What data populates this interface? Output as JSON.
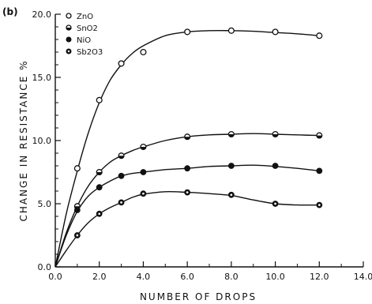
{
  "chart_data": {
    "type": "scatter",
    "panel_label": "(b)",
    "xlabel": "NUMBER  OF  DROPS",
    "ylabel": "CHANGE  IN  RESISTANCE  %",
    "xlim": [
      0,
      14
    ],
    "ylim": [
      0,
      20
    ],
    "xticks": [
      "0.0",
      "2.0",
      "4.0",
      "6.0",
      "8.0",
      "10.0",
      "12.0",
      "14.0"
    ],
    "yticks": [
      "0.0",
      "5.0",
      "10.0",
      "15.0",
      "20.0"
    ],
    "grid": false,
    "legend_position": "top-left",
    "series": [
      {
        "name": "ZnO",
        "marker": "open-circle",
        "x": [
          1,
          2,
          3,
          4,
          6,
          8,
          10,
          12
        ],
        "y": [
          7.8,
          13.2,
          16.1,
          17.0,
          18.6,
          18.7,
          18.6,
          18.3
        ],
        "curve": [
          [
            0,
            0
          ],
          [
            0.5,
            4.2
          ],
          [
            1,
            7.6
          ],
          [
            1.5,
            10.6
          ],
          [
            2,
            13.0
          ],
          [
            2.5,
            14.8
          ],
          [
            3,
            16.0
          ],
          [
            3.5,
            16.9
          ],
          [
            4,
            17.5
          ],
          [
            5,
            18.3
          ],
          [
            6,
            18.6
          ],
          [
            7,
            18.7
          ],
          [
            8,
            18.7
          ],
          [
            9,
            18.65
          ],
          [
            10,
            18.55
          ],
          [
            11,
            18.45
          ],
          [
            12,
            18.3
          ]
        ]
      },
      {
        "name": "SnO2",
        "marker": "half-circle",
        "x": [
          1,
          2,
          3,
          4,
          6,
          8,
          10,
          12
        ],
        "y": [
          4.8,
          7.5,
          8.8,
          9.5,
          10.3,
          10.5,
          10.5,
          10.4
        ],
        "curve": [
          [
            0,
            0
          ],
          [
            0.5,
            2.7
          ],
          [
            1,
            4.8
          ],
          [
            1.5,
            6.4
          ],
          [
            2,
            7.5
          ],
          [
            2.5,
            8.3
          ],
          [
            3,
            8.8
          ],
          [
            3.5,
            9.2
          ],
          [
            4,
            9.5
          ],
          [
            5,
            10.0
          ],
          [
            6,
            10.3
          ],
          [
            7,
            10.45
          ],
          [
            8,
            10.5
          ],
          [
            9,
            10.55
          ],
          [
            10,
            10.5
          ],
          [
            11,
            10.45
          ],
          [
            12,
            10.4
          ]
        ]
      },
      {
        "name": "NiO",
        "marker": "filled-circle",
        "x": [
          1,
          2,
          3,
          4,
          6,
          8,
          10,
          12
        ],
        "y": [
          4.5,
          6.3,
          7.2,
          7.5,
          7.8,
          8.0,
          8.0,
          7.6
        ],
        "curve": [
          [
            0,
            0
          ],
          [
            0.5,
            2.5
          ],
          [
            1,
            4.4
          ],
          [
            1.5,
            5.6
          ],
          [
            2,
            6.3
          ],
          [
            2.5,
            6.8
          ],
          [
            3,
            7.2
          ],
          [
            3.5,
            7.4
          ],
          [
            4,
            7.5
          ],
          [
            5,
            7.7
          ],
          [
            6,
            7.8
          ],
          [
            7,
            7.95
          ],
          [
            8,
            8.0
          ],
          [
            9,
            8.05
          ],
          [
            10,
            7.95
          ],
          [
            11,
            7.8
          ],
          [
            12,
            7.6
          ]
        ]
      },
      {
        "name": "Sb2O3",
        "marker": "ring-dot",
        "x": [
          1,
          2,
          3,
          4,
          6,
          8,
          10,
          12
        ],
        "y": [
          2.5,
          4.2,
          5.1,
          5.8,
          5.9,
          5.7,
          5.0,
          4.9
        ],
        "curve": [
          [
            0,
            0
          ],
          [
            0.5,
            1.3
          ],
          [
            1,
            2.5
          ],
          [
            1.5,
            3.5
          ],
          [
            2,
            4.2
          ],
          [
            2.5,
            4.7
          ],
          [
            3,
            5.1
          ],
          [
            3.5,
            5.5
          ],
          [
            4,
            5.75
          ],
          [
            5,
            5.95
          ],
          [
            6,
            5.9
          ],
          [
            7,
            5.8
          ],
          [
            8,
            5.65
          ],
          [
            9,
            5.3
          ],
          [
            10,
            5.0
          ],
          [
            11,
            4.9
          ],
          [
            12,
            4.9
          ]
        ]
      }
    ]
  }
}
